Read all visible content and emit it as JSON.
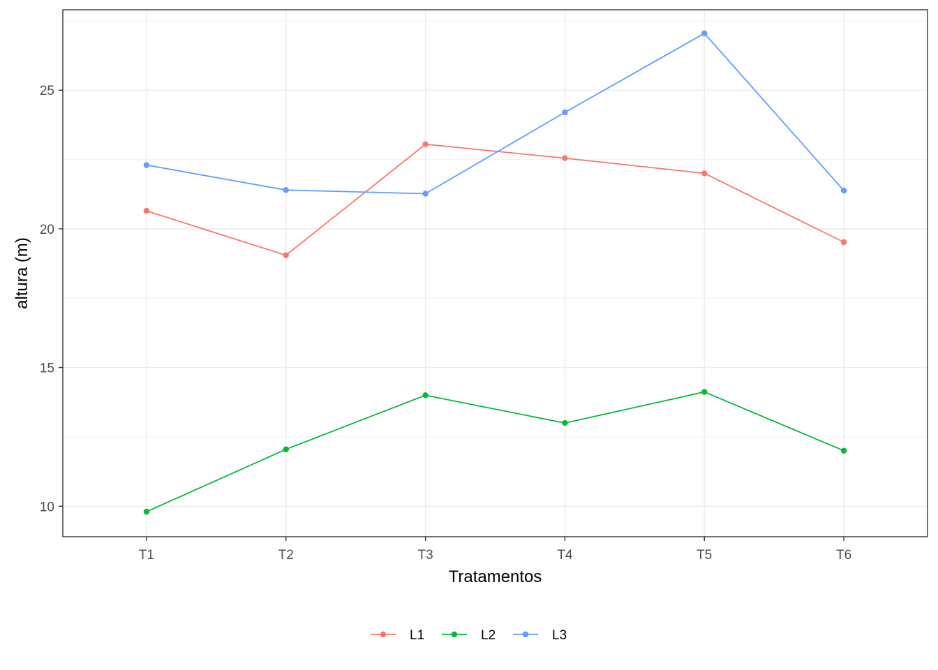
{
  "chart_data": {
    "type": "line",
    "title": "",
    "xlabel": "Tratamentos",
    "ylabel": "altura (m)",
    "categories": [
      "T1",
      "T2",
      "T3",
      "T4",
      "T5",
      "T6"
    ],
    "ylim": [
      8.9,
      27.9
    ],
    "yticks": [
      10,
      15,
      20,
      25
    ],
    "grid": true,
    "legend_position": "bottom",
    "series": [
      {
        "name": "L1",
        "color": "#F8766D",
        "values": [
          20.65,
          19.05,
          23.05,
          22.55,
          22.0,
          19.52
        ]
      },
      {
        "name": "L2",
        "color": "#00BA38",
        "values": [
          9.8,
          12.05,
          14.0,
          13.0,
          14.12,
          12.0
        ]
      },
      {
        "name": "L3",
        "color": "#619CFF",
        "values": [
          22.3,
          21.4,
          21.27,
          24.2,
          27.05,
          21.38
        ]
      }
    ]
  }
}
